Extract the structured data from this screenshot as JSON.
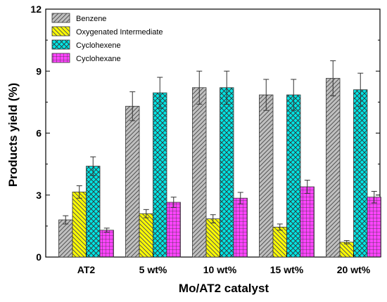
{
  "chart_data": {
    "type": "bar",
    "title": "",
    "xlabel": "Mo/AT2 catalyst",
    "ylabel": "Products yield (%)",
    "ylim": [
      0,
      12
    ],
    "yticks": [
      0,
      3,
      6,
      9,
      12
    ],
    "grid": false,
    "legend_position": "top-left",
    "categories": [
      "AT2",
      "5 wt%",
      "10 wt%",
      "15 wt%",
      "20 wt%"
    ],
    "series": [
      {
        "name": "Benzene",
        "values": [
          1.8,
          7.3,
          8.2,
          7.85,
          8.65
        ],
        "errors": [
          0.2,
          0.7,
          0.8,
          0.75,
          0.85
        ],
        "color": "#c0c0c0",
        "pattern": "diag-right"
      },
      {
        "name": "Oxygenated Intermediate",
        "values": [
          3.15,
          2.1,
          1.85,
          1.45,
          0.72
        ],
        "errors": [
          0.3,
          0.2,
          0.2,
          0.15,
          0.08
        ],
        "color": "#ffff00",
        "pattern": "diag-left"
      },
      {
        "name": "Cyclohexene",
        "values": [
          4.4,
          7.95,
          8.2,
          7.85,
          8.1
        ],
        "errors": [
          0.45,
          0.75,
          0.8,
          0.75,
          0.8
        ],
        "color": "#00e5e5",
        "pattern": "crosshatch"
      },
      {
        "name": "Cyclohexane",
        "values": [
          1.3,
          2.65,
          2.85,
          3.4,
          2.9
        ],
        "errors": [
          0.1,
          0.25,
          0.28,
          0.32,
          0.28
        ],
        "color": "#ff44ff",
        "pattern": "grid"
      }
    ]
  }
}
